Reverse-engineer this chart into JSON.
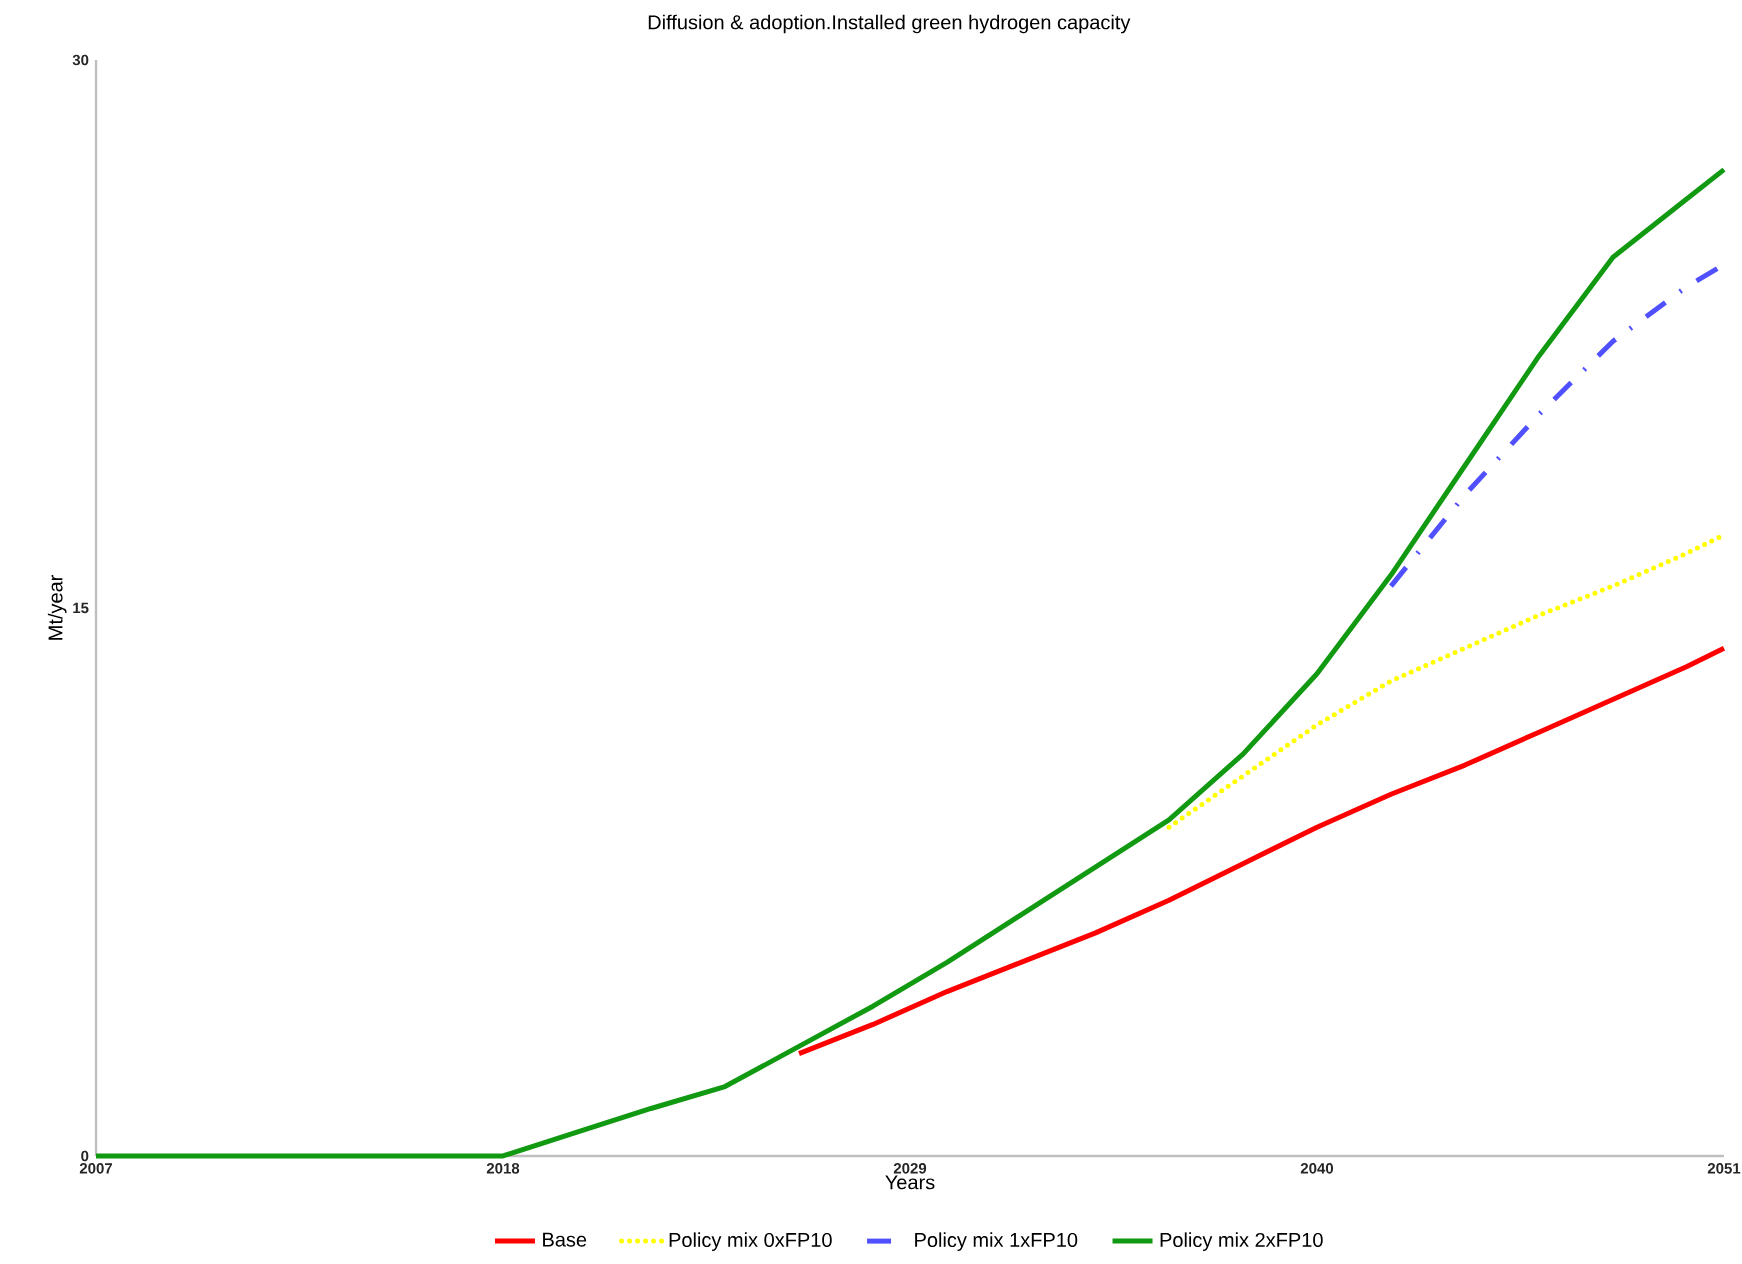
{
  "chart_data": {
    "type": "line",
    "title": "Diffusion & adoption.Installed green hydrogen capacity",
    "xlabel": "Years",
    "ylabel": "Mt/year",
    "x": [
      2007,
      2018,
      2020,
      2022,
      2024,
      2026,
      2028,
      2030,
      2032,
      2034,
      2036,
      2038,
      2040,
      2042,
      2044,
      2046,
      2048,
      2050,
      2051
    ],
    "series": [
      {
        "name": "Base",
        "color": "#ff0000",
        "line_style": "solid",
        "values": [
          null,
          null,
          null,
          null,
          null,
          2.8,
          3.6,
          4.5,
          5.3,
          6.1,
          7.0,
          8.0,
          9.0,
          9.9,
          10.7,
          11.6,
          12.5,
          13.4,
          13.9
        ]
      },
      {
        "name": "Policy mix 0xFP10",
        "color": "#ffff00",
        "line_style": "dotted",
        "values": [
          null,
          null,
          null,
          null,
          null,
          null,
          null,
          null,
          null,
          null,
          9.0,
          10.4,
          11.8,
          13.0,
          13.9,
          14.8,
          15.6,
          16.5,
          17.0
        ]
      },
      {
        "name": "Policy mix 1xFP10",
        "color": "#5050ff",
        "line_style": "dashdot",
        "values": [
          null,
          null,
          null,
          null,
          null,
          null,
          null,
          null,
          null,
          null,
          null,
          null,
          null,
          15.6,
          18.1,
          20.3,
          22.3,
          23.8,
          24.4
        ]
      },
      {
        "name": "Policy mix 2xFP10",
        "color": "#119911",
        "line_style": "solid",
        "values": [
          0,
          0,
          0.65,
          1.3,
          1.9,
          3.0,
          4.1,
          5.3,
          6.6,
          7.9,
          9.2,
          11.0,
          13.2,
          15.9,
          18.9,
          21.9,
          24.6,
          26.2,
          27.0
        ]
      }
    ],
    "xlim": [
      2007,
      2051
    ],
    "ylim": [
      0,
      30
    ],
    "xticks": [
      2007,
      2018,
      2029,
      2040,
      2051
    ],
    "yticks": [
      0,
      15,
      30
    ],
    "legend": "bottom"
  }
}
